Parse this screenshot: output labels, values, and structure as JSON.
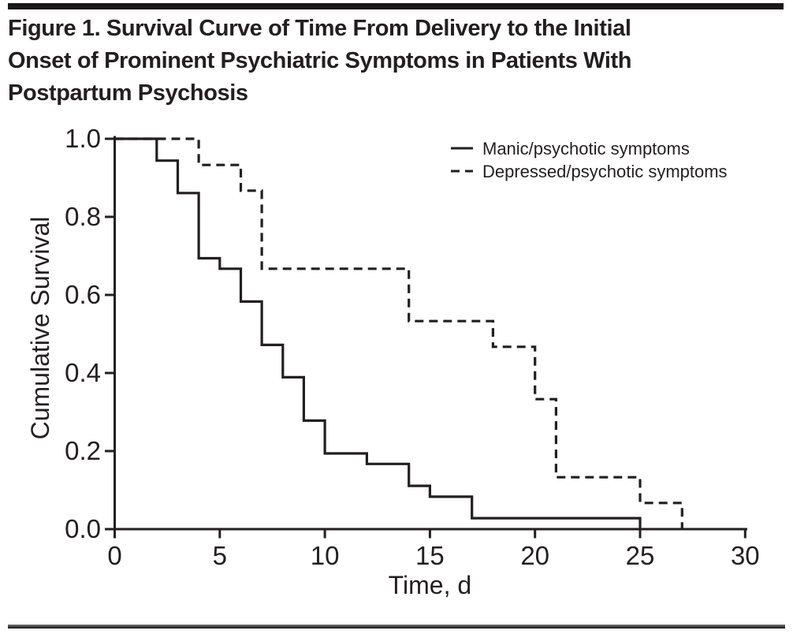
{
  "figure": {
    "title_lines": [
      "Figure 1. Survival Curve of Time From Delivery to the Initial",
      "Onset of Prominent Psychiatric Symptoms in Patients With",
      "Postpartum Psychosis"
    ]
  },
  "chart_data": {
    "type": "line",
    "variant": "kaplan-meier-step-survival",
    "title": "",
    "xlabel": "Time, d",
    "ylabel": "Cumulative Survival",
    "xlim": [
      0,
      30
    ],
    "ylim": [
      0.0,
      1.0
    ],
    "x_ticks": [
      0,
      5,
      10,
      15,
      20,
      25,
      30
    ],
    "y_ticks": [
      1.0,
      0.8,
      0.6,
      0.4,
      0.2,
      0.0
    ],
    "y_tick_labels": [
      "1.0",
      "0.8",
      "0.6",
      "0.4",
      "0.2",
      "0.0"
    ],
    "grid": false,
    "legend_position": "top-right",
    "line_color": "#231f20",
    "series": [
      {
        "name": "Manic/psychotic symptoms",
        "line_style": "solid",
        "steps": [
          [
            0,
            1.0
          ],
          [
            2,
            0.944
          ],
          [
            3,
            0.861
          ],
          [
            4,
            0.694
          ],
          [
            5,
            0.667
          ],
          [
            6,
            0.583
          ],
          [
            7,
            0.472
          ],
          [
            8,
            0.389
          ],
          [
            9,
            0.278
          ],
          [
            10,
            0.194
          ],
          [
            12,
            0.167
          ],
          [
            14,
            0.111
          ],
          [
            15,
            0.083
          ],
          [
            17,
            0.028
          ],
          [
            25,
            0.0
          ]
        ]
      },
      {
        "name": "Depressed/psychotic symptoms",
        "line_style": "dashed",
        "steps": [
          [
            0,
            1.0
          ],
          [
            4,
            0.933
          ],
          [
            6,
            0.867
          ],
          [
            7,
            0.667
          ],
          [
            14,
            0.533
          ],
          [
            18,
            0.467
          ],
          [
            20,
            0.333
          ],
          [
            21,
            0.133
          ],
          [
            25,
            0.067
          ],
          [
            27,
            0.0
          ]
        ]
      }
    ]
  }
}
